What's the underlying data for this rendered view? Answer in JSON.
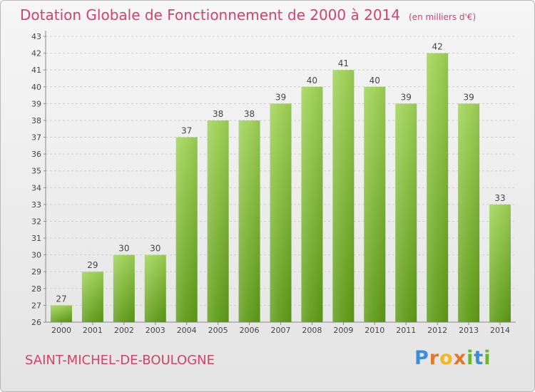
{
  "chart_data": {
    "type": "bar",
    "title": "Dotation Globale de Fonctionnement de 2000 à 2014",
    "subtitle": "(en milliers d'€)",
    "categories": [
      "2000",
      "2001",
      "2002",
      "2003",
      "2004",
      "2005",
      "2006",
      "2007",
      "2008",
      "2009",
      "2010",
      "2011",
      "2012",
      "2013",
      "2014"
    ],
    "values": [
      27,
      29,
      30,
      30,
      37,
      38,
      38,
      39,
      40,
      41,
      40,
      39,
      42,
      39,
      33
    ],
    "ylim": [
      26,
      43
    ],
    "yticks": [
      "26",
      "27",
      "28",
      "29",
      "30",
      "31",
      "32",
      "33",
      "34",
      "35",
      "36",
      "37",
      "38",
      "39",
      "40",
      "41",
      "42",
      "43"
    ],
    "grid": true,
    "bar_color_top": "#9fd156",
    "bar_color_bottom": "#5d9a17"
  },
  "footer": {
    "commune": "SAINT-MICHEL-DE-BOULOGNE",
    "logo": {
      "p": "P",
      "r": "r",
      "o": "o",
      "x": "x",
      "i1": "i",
      "t": "t",
      "i2": "i"
    }
  }
}
